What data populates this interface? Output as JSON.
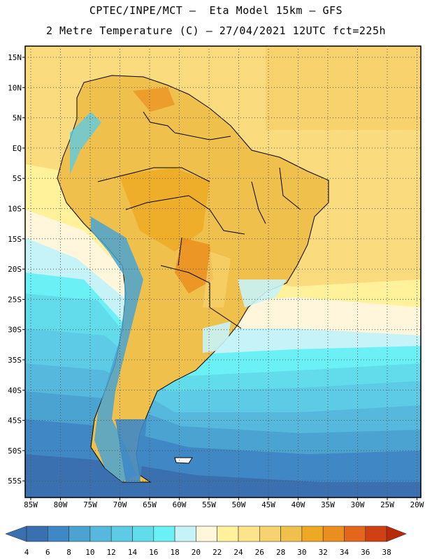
{
  "title_line1": "CPTEC/INPE/MCT –  Eta Model 15km – GFS",
  "title_line2": "2 Metre Temperature (C) – 27/04/2021 12UTC fct=225h",
  "lat_labels": [
    "15N",
    "10N",
    "5N",
    "EQ",
    "5S",
    "10S",
    "15S",
    "20S",
    "25S",
    "30S",
    "35S",
    "40S",
    "45S",
    "50S",
    "55S"
  ],
  "lon_labels": [
    "85W",
    "80W",
    "75W",
    "70W",
    "65W",
    "60W",
    "55W",
    "50W",
    "45W",
    "40W",
    "35W",
    "30W",
    "25W",
    "20W"
  ],
  "colorbar": {
    "values": [
      "4",
      "6",
      "8",
      "10",
      "12",
      "14",
      "16",
      "18",
      "20",
      "22",
      "24",
      "26",
      "28",
      "30",
      "32",
      "34",
      "36",
      "38"
    ],
    "colors": [
      "#3a6fb0",
      "#3f88c5",
      "#4ba3d2",
      "#56b8dd",
      "#5ecbe6",
      "#62dceb",
      "#6af0f5",
      "#c6f3f8",
      "#fff6dc",
      "#fff29a",
      "#fde38a",
      "#f6d36e",
      "#f0c04c",
      "#eea922",
      "#ea8e1e",
      "#e3661a",
      "#cf4012",
      "#b82a0a"
    ]
  }
}
